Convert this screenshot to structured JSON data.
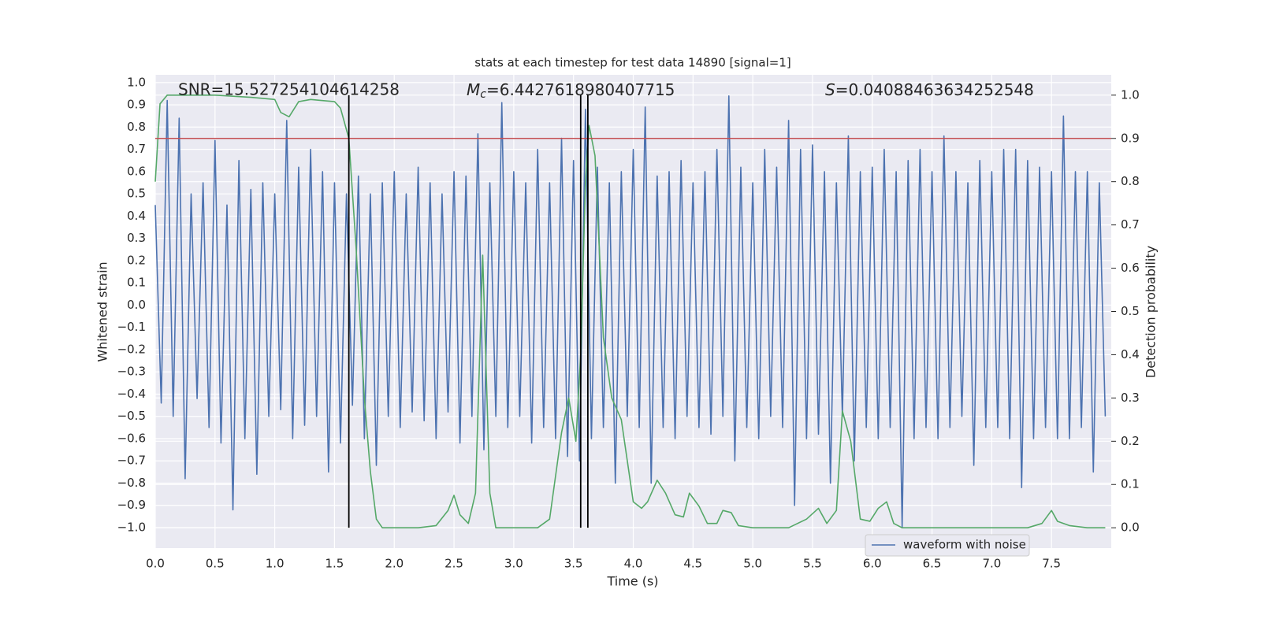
{
  "chart_data": {
    "type": "line",
    "title": "stats at each timestep for test data 14890 [signal=1]",
    "x_label": "Time (s)",
    "y_label": "Whitened strain",
    "y2_label": "Detection probability",
    "annotations": {
      "snr": "SNR=15.527254104614258",
      "mc_symbol": "M",
      "mc_subscript": "c",
      "mc_value": "=6.4427618980407715",
      "s_symbol": "S",
      "s_value": "=0.04088463634252548"
    },
    "xlim": [
      0,
      8
    ],
    "ylim": [
      -1.092,
      1.035
    ],
    "y2lim": [
      -0.047,
      1.047
    ],
    "grid": true,
    "legend": "lower right",
    "xticks": [
      {
        "value": 0,
        "label": "0.0"
      },
      {
        "value": 0.5,
        "label": "0.5"
      },
      {
        "value": 1,
        "label": "1.0"
      },
      {
        "value": 1.5,
        "label": "1.5"
      },
      {
        "value": 2,
        "label": "2.0"
      },
      {
        "value": 2.5,
        "label": "2.5"
      },
      {
        "value": 3,
        "label": "3.0"
      },
      {
        "value": 3.5,
        "label": "3.5"
      },
      {
        "value": 4,
        "label": "4.0"
      },
      {
        "value": 4.5,
        "label": "4.5"
      },
      {
        "value": 5,
        "label": "5.0"
      },
      {
        "value": 5.5,
        "label": "5.5"
      },
      {
        "value": 6,
        "label": "6.0"
      },
      {
        "value": 6.5,
        "label": "6.5"
      },
      {
        "value": 7,
        "label": "7.0"
      },
      {
        "value": 7.5,
        "label": "7.5"
      }
    ],
    "yticks": [
      {
        "value": -1,
        "label": "−1.0"
      },
      {
        "value": -0.9,
        "label": "−0.9"
      },
      {
        "value": -0.8,
        "label": "−0.8"
      },
      {
        "value": -0.7,
        "label": "−0.7"
      },
      {
        "value": -0.6,
        "label": "−0.6"
      },
      {
        "value": -0.5,
        "label": "−0.5"
      },
      {
        "value": -0.4,
        "label": "−0.4"
      },
      {
        "value": -0.3,
        "label": "−0.3"
      },
      {
        "value": -0.2,
        "label": "−0.2"
      },
      {
        "value": -0.1,
        "label": "−0.1"
      },
      {
        "value": 0,
        "label": "0.0"
      },
      {
        "value": 0.1,
        "label": "0.1"
      },
      {
        "value": 0.2,
        "label": "0.2"
      },
      {
        "value": 0.3,
        "label": "0.3"
      },
      {
        "value": 0.4,
        "label": "0.4"
      },
      {
        "value": 0.5,
        "label": "0.5"
      },
      {
        "value": 0.6,
        "label": "0.6"
      },
      {
        "value": 0.7,
        "label": "0.7"
      },
      {
        "value": 0.8,
        "label": "0.8"
      },
      {
        "value": 0.9,
        "label": "0.9"
      },
      {
        "value": 1,
        "label": "1.0"
      }
    ],
    "y2ticks": [
      {
        "value": 0,
        "label": "0.0"
      },
      {
        "value": 0.1,
        "label": "0.1"
      },
      {
        "value": 0.2,
        "label": "0.2"
      },
      {
        "value": 0.3,
        "label": "0.3"
      },
      {
        "value": 0.4,
        "label": "0.4"
      },
      {
        "value": 0.5,
        "label": "0.5"
      },
      {
        "value": 0.6,
        "label": "0.6"
      },
      {
        "value": 0.7,
        "label": "0.7"
      },
      {
        "value": 0.8,
        "label": "0.8"
      },
      {
        "value": 0.9,
        "label": "0.9"
      },
      {
        "value": 1,
        "label": "1.0"
      }
    ],
    "vlines": {
      "x": [
        1.62,
        3.56,
        3.62
      ],
      "range": [
        0,
        1
      ],
      "axis": "y2",
      "color": "#000000"
    },
    "hline": {
      "value": 0.9,
      "axis": "y2",
      "color": "#c44e52"
    },
    "series": [
      {
        "name": "waveform with noise",
        "color": "#4c72b0",
        "x": [
          0,
          0.05,
          0.1,
          0.15,
          0.2,
          0.25,
          0.3,
          0.35,
          0.4,
          0.45,
          0.5,
          0.55,
          0.6,
          0.65,
          0.7,
          0.75,
          0.8,
          0.85,
          0.9,
          0.95,
          1,
          1.05,
          1.1,
          1.15,
          1.2,
          1.25,
          1.3,
          1.35,
          1.4,
          1.45,
          1.5,
          1.55,
          1.6,
          1.65,
          1.7,
          1.75,
          1.8,
          1.85,
          1.9,
          1.95,
          2,
          2.05,
          2.1,
          2.15,
          2.2,
          2.25,
          2.3,
          2.35,
          2.4,
          2.45,
          2.5,
          2.55,
          2.6,
          2.65,
          2.7,
          2.75,
          2.8,
          2.85,
          2.9,
          2.95,
          3,
          3.05,
          3.1,
          3.15,
          3.2,
          3.25,
          3.3,
          3.35,
          3.4,
          3.45,
          3.5,
          3.55,
          3.6,
          3.65,
          3.7,
          3.75,
          3.8,
          3.85,
          3.9,
          3.95,
          4,
          4.05,
          4.1,
          4.15,
          4.2,
          4.25,
          4.3,
          4.35,
          4.4,
          4.45,
          4.5,
          4.55,
          4.6,
          4.65,
          4.7,
          4.75,
          4.8,
          4.85,
          4.9,
          4.95,
          5,
          5.05,
          5.1,
          5.15,
          5.2,
          5.25,
          5.3,
          5.35,
          5.4,
          5.45,
          5.5,
          5.55,
          5.6,
          5.65,
          5.7,
          5.75,
          5.8,
          5.85,
          5.9,
          5.95,
          6,
          6.05,
          6.1,
          6.15,
          6.2,
          6.25,
          6.3,
          6.35,
          6.4,
          6.45,
          6.5,
          6.55,
          6.6,
          6.65,
          6.7,
          6.75,
          6.8,
          6.85,
          6.9,
          6.95,
          7,
          7.05,
          7.1,
          7.15,
          7.2,
          7.25,
          7.3,
          7.35,
          7.4,
          7.45,
          7.5,
          7.55,
          7.6,
          7.65,
          7.7,
          7.75,
          7.8,
          7.85,
          7.9,
          7.95
        ],
        "values": [
          0.45,
          -0.44,
          0.92,
          -0.5,
          0.84,
          -0.78,
          0.5,
          -0.42,
          0.55,
          -0.55,
          0.74,
          -0.62,
          0.45,
          -0.92,
          0.65,
          -0.6,
          0.52,
          -0.76,
          0.55,
          -0.5,
          0.5,
          -0.47,
          0.83,
          -0.6,
          0.62,
          -0.54,
          0.7,
          -0.5,
          0.6,
          -0.75,
          0.55,
          -0.62,
          0.5,
          -0.45,
          0.58,
          -0.6,
          0.5,
          -0.72,
          0.55,
          -0.5,
          0.6,
          -0.55,
          0.5,
          -0.48,
          0.62,
          -0.52,
          0.55,
          -0.6,
          0.5,
          -0.48,
          0.6,
          -0.62,
          0.58,
          -0.5,
          0.77,
          -0.65,
          0.55,
          -0.5,
          0.91,
          -0.55,
          0.6,
          -0.5,
          0.55,
          -0.62,
          0.7,
          -0.55,
          0.55,
          -0.6,
          0.75,
          -0.68,
          0.65,
          -0.7,
          0.88,
          -0.6,
          0.62,
          -0.55,
          0.55,
          -0.8,
          0.6,
          -0.5,
          0.7,
          -0.55,
          0.89,
          -0.8,
          0.58,
          -0.55,
          0.6,
          -0.6,
          0.65,
          -0.5,
          0.55,
          -0.55,
          0.6,
          -0.58,
          0.7,
          -0.5,
          0.94,
          -0.7,
          0.62,
          -0.55,
          0.55,
          -0.6,
          0.7,
          -0.5,
          0.62,
          -0.55,
          0.83,
          -0.9,
          0.7,
          -0.6,
          0.72,
          -0.58,
          0.6,
          -0.8,
          0.55,
          -0.5,
          0.76,
          -0.7,
          0.6,
          -0.55,
          0.62,
          -0.6,
          0.7,
          -0.55,
          0.6,
          -1.0,
          0.65,
          -0.6,
          0.7,
          -0.55,
          0.6,
          -0.6,
          0.76,
          -0.55,
          0.6,
          -0.5,
          0.55,
          -0.72,
          0.65,
          -0.55,
          0.6,
          -0.55,
          0.7,
          -0.6,
          0.7,
          -0.82,
          0.65,
          -0.6,
          0.62,
          -0.55,
          0.6,
          -0.6,
          0.85,
          -0.6,
          0.6,
          -0.55,
          0.6,
          -0.75,
          0.55,
          -0.5
        ]
      },
      {
        "color": "#55a868",
        "axis": "y2",
        "x": [
          0,
          0.04,
          0.1,
          0.5,
          0.8,
          1.0,
          1.05,
          1.12,
          1.2,
          1.3,
          1.5,
          1.55,
          1.62,
          1.68,
          1.75,
          1.8,
          1.85,
          1.9,
          2.0,
          2.2,
          2.35,
          2.45,
          2.5,
          2.55,
          2.62,
          2.68,
          2.74,
          2.8,
          2.85,
          3.0,
          3.2,
          3.3,
          3.4,
          3.46,
          3.52,
          3.56,
          3.6,
          3.63,
          3.68,
          3.75,
          3.82,
          3.9,
          4.0,
          4.07,
          4.12,
          4.2,
          4.27,
          4.35,
          4.42,
          4.47,
          4.55,
          4.62,
          4.7,
          4.75,
          4.82,
          4.88,
          5.0,
          5.3,
          5.45,
          5.55,
          5.62,
          5.7,
          5.75,
          5.82,
          5.9,
          5.98,
          6.05,
          6.12,
          6.18,
          6.25,
          6.5,
          7.0,
          7.3,
          7.42,
          7.5,
          7.55,
          7.65,
          7.8,
          7.95
        ],
        "values": [
          0.8,
          0.98,
          1.0,
          1.0,
          0.995,
          0.99,
          0.96,
          0.95,
          0.985,
          0.99,
          0.985,
          0.97,
          0.9,
          0.65,
          0.3,
          0.13,
          0.02,
          0.0,
          0.0,
          0.0,
          0.005,
          0.04,
          0.075,
          0.03,
          0.01,
          0.08,
          0.63,
          0.08,
          0.0,
          0.0,
          0.0,
          0.02,
          0.22,
          0.3,
          0.2,
          0.4,
          0.8,
          0.93,
          0.86,
          0.44,
          0.3,
          0.25,
          0.06,
          0.045,
          0.06,
          0.11,
          0.08,
          0.03,
          0.025,
          0.08,
          0.05,
          0.01,
          0.01,
          0.04,
          0.035,
          0.005,
          0.0,
          0.0,
          0.02,
          0.045,
          0.01,
          0.04,
          0.27,
          0.2,
          0.02,
          0.015,
          0.045,
          0.06,
          0.01,
          0.0,
          0.0,
          0.0,
          0.0,
          0.01,
          0.04,
          0.015,
          0.005,
          0.0,
          0.0
        ]
      }
    ]
  }
}
